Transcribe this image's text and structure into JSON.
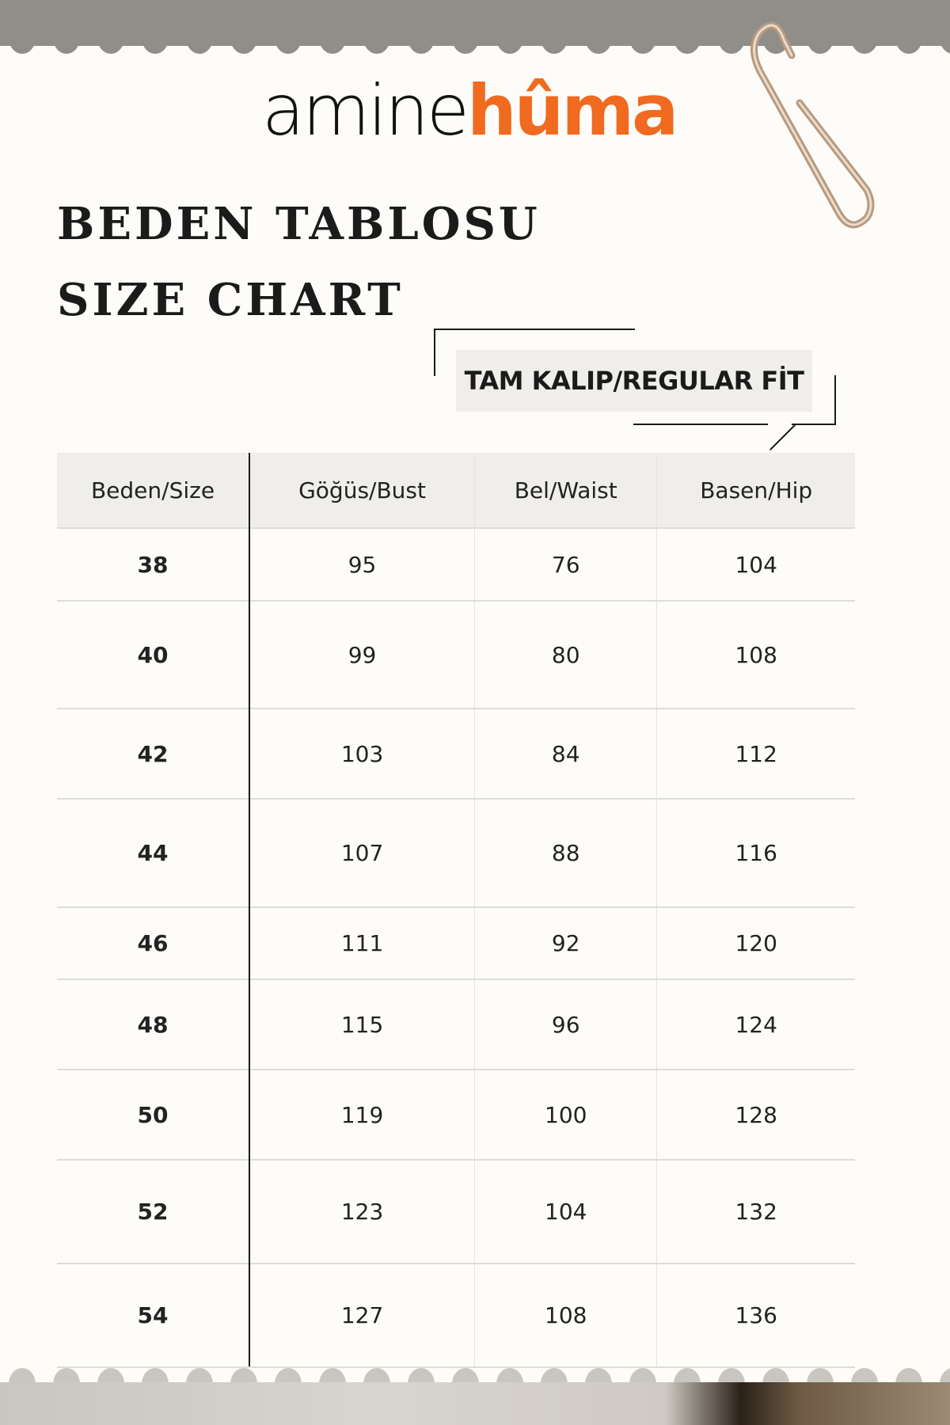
{
  "brand": {
    "logo_part1": "amine",
    "logo_part2": "hûma",
    "accent_color": "#f06a1f"
  },
  "title_tr": "BEDEN TABLOSU",
  "title_en": "SIZE CHART",
  "fit_badge": "TAM KALIP/REGULAR FİT",
  "table": {
    "headers": [
      "Beden/Size",
      "Göğüs/Bust",
      "Bel/Waist",
      "Basen/Hip"
    ],
    "rows": [
      [
        "38",
        "95",
        "76",
        "104"
      ],
      [
        "40",
        "99",
        "80",
        "108"
      ],
      [
        "42",
        "103",
        "84",
        "112"
      ],
      [
        "44",
        "107",
        "88",
        "116"
      ],
      [
        "46",
        "111",
        "92",
        "120"
      ],
      [
        "48",
        "115",
        "96",
        "124"
      ],
      [
        "50",
        "119",
        "100",
        "128"
      ],
      [
        "52",
        "123",
        "104",
        "132"
      ],
      [
        "54",
        "127",
        "108",
        "136"
      ]
    ]
  }
}
